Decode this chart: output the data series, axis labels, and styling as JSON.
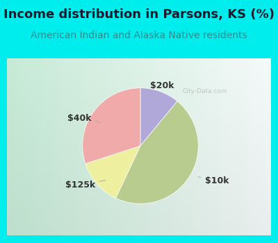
{
  "title": "Income distribution in Parsons, KS (%)",
  "subtitle": "American Indian and Alaska Native residents",
  "title_color": "#1a1a2e",
  "subtitle_color": "#2e8b8b",
  "bg_outer": "#00EDED",
  "bg_inner_left": "#c8e8d8",
  "bg_inner_right": "#e8f0f0",
  "slices": [
    {
      "label": "$20k",
      "value": 11,
      "color": "#b0a8d8"
    },
    {
      "label": "$10k",
      "value": 46,
      "color": "#b8cc90"
    },
    {
      "label": "$125k",
      "value": 13,
      "color": "#eef0a0"
    },
    {
      "label": "$40k",
      "value": 30,
      "color": "#f0aaaa"
    }
  ],
  "startangle": 90,
  "counterclock": false,
  "label_fontsize": 9,
  "title_fontsize": 13,
  "subtitle_fontsize": 10,
  "watermark": "City-Data.com",
  "label_color": "#333333",
  "line_color": "#aaaaaa"
}
